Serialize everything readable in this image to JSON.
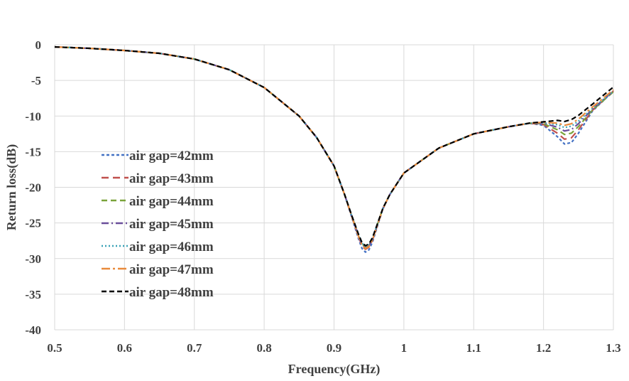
{
  "chart_data": {
    "type": "line",
    "title": "",
    "xlabel": "Frequency(GHz)",
    "ylabel": "Return loss(dB)",
    "xlim": [
      0.5,
      1.3
    ],
    "ylim": [
      -40,
      0
    ],
    "x_ticks": [
      "0.5",
      "0.6",
      "0.7",
      "0.8",
      "0.9",
      "1",
      "1.1",
      "1.2",
      "1.3"
    ],
    "y_ticks": [
      "0",
      "-5",
      "-10",
      "-15",
      "-20",
      "-25",
      "-30",
      "-35",
      "-40"
    ],
    "grid": true,
    "legend_position": "left",
    "base_x": [
      0.5,
      0.55,
      0.6,
      0.65,
      0.7,
      0.75,
      0.8,
      0.85,
      0.875,
      0.9,
      0.915,
      0.925,
      0.935,
      0.94,
      0.945,
      0.95,
      0.955,
      0.96,
      0.97,
      0.98,
      1.0,
      1.05,
      1.1,
      1.15,
      1.18,
      1.2,
      1.22,
      1.23,
      1.24,
      1.25,
      1.27,
      1.3
    ],
    "base_y": [
      -0.3,
      -0.5,
      -0.8,
      -1.2,
      -2.0,
      -3.5,
      -6.0,
      -10.0,
      -13.0,
      -17.0,
      -21.0,
      -24.0,
      -27.0,
      -28.3,
      -28.8,
      -28.5,
      -27.5,
      -26.0,
      -23.0,
      -21.0,
      -18.0,
      -14.5,
      -12.5,
      -11.5,
      -11.0,
      -11.0,
      -11.5,
      -12.0,
      -11.8,
      -11.0,
      -9.0,
      -6.5
    ],
    "series": [
      {
        "name": "air gap=42mm",
        "color": "#4472C4",
        "dash": "4 3",
        "min_shift": -0.3,
        "notch": 2.0,
        "tail_shift": 0.0
      },
      {
        "name": "air gap=43mm",
        "color": "#C0504D",
        "dash": "10 6",
        "min_shift": 0.1,
        "notch": 1.3,
        "tail_shift": 0.0
      },
      {
        "name": "air gap=44mm",
        "color": "#7AA33A",
        "dash": "8 5",
        "min_shift": 0.4,
        "notch": 0.6,
        "tail_shift": -0.1
      },
      {
        "name": "air gap=45mm",
        "color": "#6A4E9A",
        "dash": "10 4 2 4",
        "min_shift": 0.3,
        "notch": 0.1,
        "tail_shift": 0.0
      },
      {
        "name": "air gap=46mm",
        "color": "#3BA3B7",
        "dash": "2 3",
        "min_shift": 0.5,
        "notch": -0.4,
        "tail_shift": 0.0
      },
      {
        "name": "air gap=47mm",
        "color": "#E98A3B",
        "dash": "12 4 3 4",
        "min_shift": 0.2,
        "notch": -0.7,
        "tail_shift": 0.2
      },
      {
        "name": "air gap=48mm",
        "color": "#000000",
        "dash": "7 4",
        "min_shift": 0.6,
        "notch": -1.2,
        "tail_shift": 0.6
      }
    ]
  }
}
